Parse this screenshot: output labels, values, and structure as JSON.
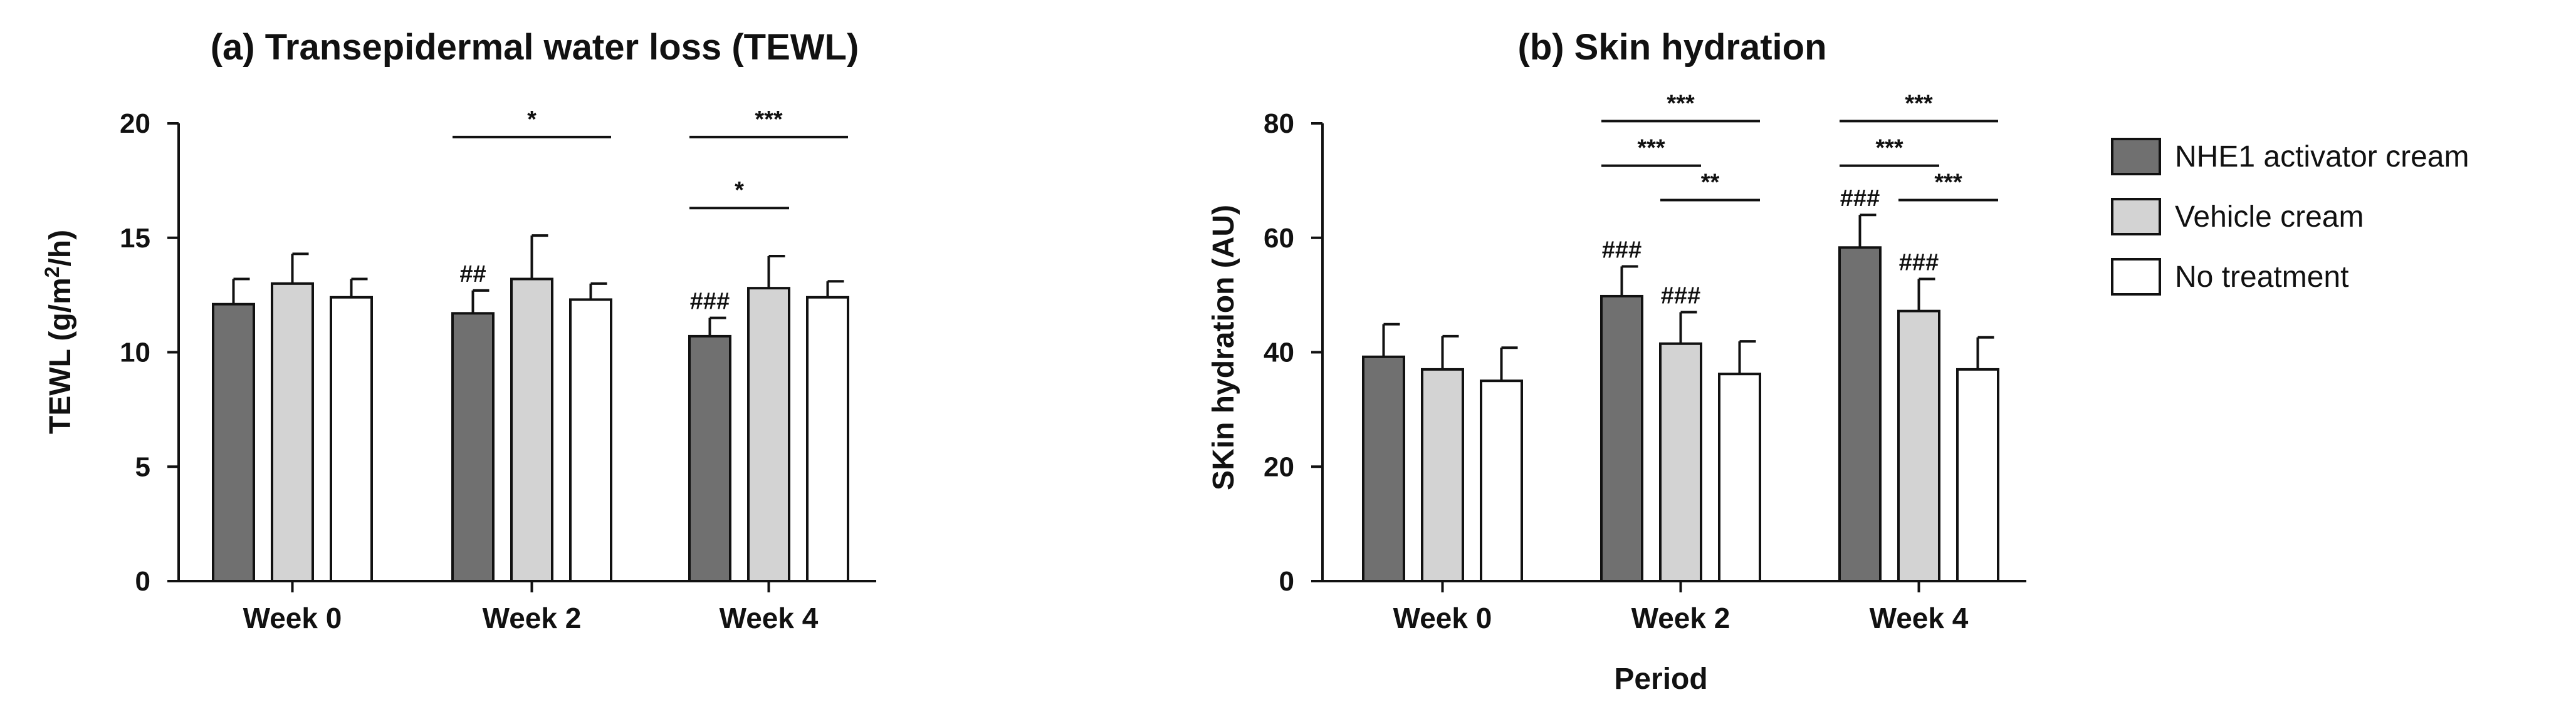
{
  "chart_data": [
    {
      "type": "bar",
      "title": "(a) Transepidermal water loss (TEWL)",
      "ylabel_main": "TEWL (g/m",
      "ylabel_sup": "2",
      "ylabel_end": "/h)",
      "xlabel": "",
      "ylim": [
        0,
        20
      ],
      "yticks": [
        "0",
        "5",
        "10",
        "15",
        "20"
      ],
      "categories": [
        "Week 0",
        "Week 2",
        "Week 4"
      ],
      "series": [
        {
          "name": "NHE1 activator cream",
          "color": "#707070",
          "values": [
            12.1,
            11.7,
            10.7
          ],
          "errors": [
            1.1,
            1.0,
            0.8
          ]
        },
        {
          "name": "Vehicle cream",
          "color": "#d3d3d3",
          "values": [
            13.0,
            13.2,
            12.8
          ],
          "errors": [
            1.3,
            1.9,
            1.4
          ]
        },
        {
          "name": "No treatment",
          "color": "#ffffff",
          "values": [
            12.4,
            12.3,
            12.4
          ],
          "errors": [
            0.8,
            0.7,
            0.7
          ]
        }
      ],
      "bar_marks": [
        {
          "cat": 1,
          "series": 0,
          "text": "##"
        },
        {
          "cat": 2,
          "series": 0,
          "text": "###"
        }
      ],
      "significance": [
        {
          "cat": 1,
          "from": 0,
          "to": 2,
          "y": 19.4,
          "text": "*"
        },
        {
          "cat": 2,
          "from": 0,
          "to": 1,
          "y": 16.3,
          "text": "*"
        },
        {
          "cat": 2,
          "from": 0,
          "to": 2,
          "y": 19.4,
          "text": "***"
        }
      ]
    },
    {
      "type": "bar",
      "title": "(b) Skin hydration",
      "ylabel": "SKin hydration (AU)",
      "xlabel": "Period",
      "ylim": [
        0,
        80
      ],
      "yticks": [
        "0",
        "20",
        "40",
        "60",
        "80"
      ],
      "categories": [
        "Week 0",
        "Week 2",
        "Week 4"
      ],
      "series": [
        {
          "name": "NHE1 activator cream",
          "color": "#707070",
          "values": [
            39.2,
            49.8,
            58.3
          ],
          "errors": [
            5.7,
            5.2,
            5.7
          ]
        },
        {
          "name": "Vehicle cream",
          "color": "#d3d3d3",
          "values": [
            37.0,
            41.5,
            47.2
          ],
          "errors": [
            5.8,
            5.5,
            5.6
          ]
        },
        {
          "name": "No treatment",
          "color": "#ffffff",
          "values": [
            35.0,
            36.2,
            37.0
          ],
          "errors": [
            5.8,
            5.7,
            5.6
          ]
        }
      ],
      "bar_marks": [
        {
          "cat": 1,
          "series": 0,
          "text": "###"
        },
        {
          "cat": 1,
          "series": 1,
          "text": "###"
        },
        {
          "cat": 2,
          "series": 0,
          "text": "###"
        },
        {
          "cat": 2,
          "series": 1,
          "text": "###"
        }
      ],
      "significance": [
        {
          "cat": 1,
          "from": 0,
          "to": 2,
          "y": 80.4,
          "text": "***"
        },
        {
          "cat": 1,
          "from": 0,
          "to": 1,
          "y": 72.6,
          "text": "***"
        },
        {
          "cat": 1,
          "from": 1,
          "to": 2,
          "y": 66.6,
          "text": "**"
        },
        {
          "cat": 2,
          "from": 0,
          "to": 2,
          "y": 80.4,
          "text": "***"
        },
        {
          "cat": 2,
          "from": 0,
          "to": 1,
          "y": 72.6,
          "text": "***"
        },
        {
          "cat": 2,
          "from": 1,
          "to": 2,
          "y": 66.6,
          "text": "***"
        }
      ]
    }
  ],
  "legend": {
    "items": [
      {
        "label": "NHE1 activator cream",
        "color": "#707070"
      },
      {
        "label": "Vehicle cream",
        "color": "#d3d3d3"
      },
      {
        "label": "No treatment",
        "color": "#ffffff"
      }
    ]
  }
}
